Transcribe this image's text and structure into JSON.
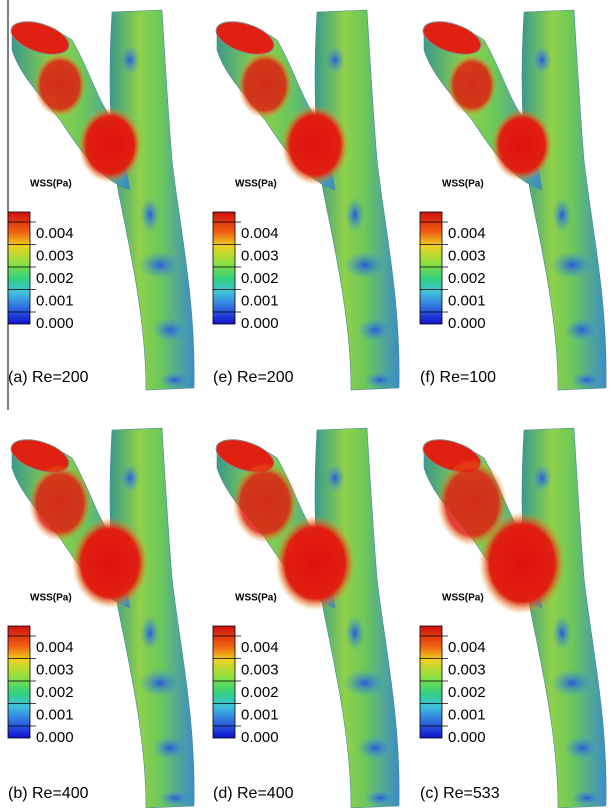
{
  "colorbar": {
    "title": "WSS(Pa)",
    "ticks": [
      "0.004",
      "0.003",
      "0.002",
      "0.001",
      "0.000"
    ]
  },
  "panels": [
    {
      "label": "(a) Re=200"
    },
    {
      "label": "(e) Re=200"
    },
    {
      "label": "(f) Re=100"
    },
    {
      "label": "(b) Re=400"
    },
    {
      "label": "(d) Re=400"
    },
    {
      "label": "(c) Re=533"
    }
  ]
}
